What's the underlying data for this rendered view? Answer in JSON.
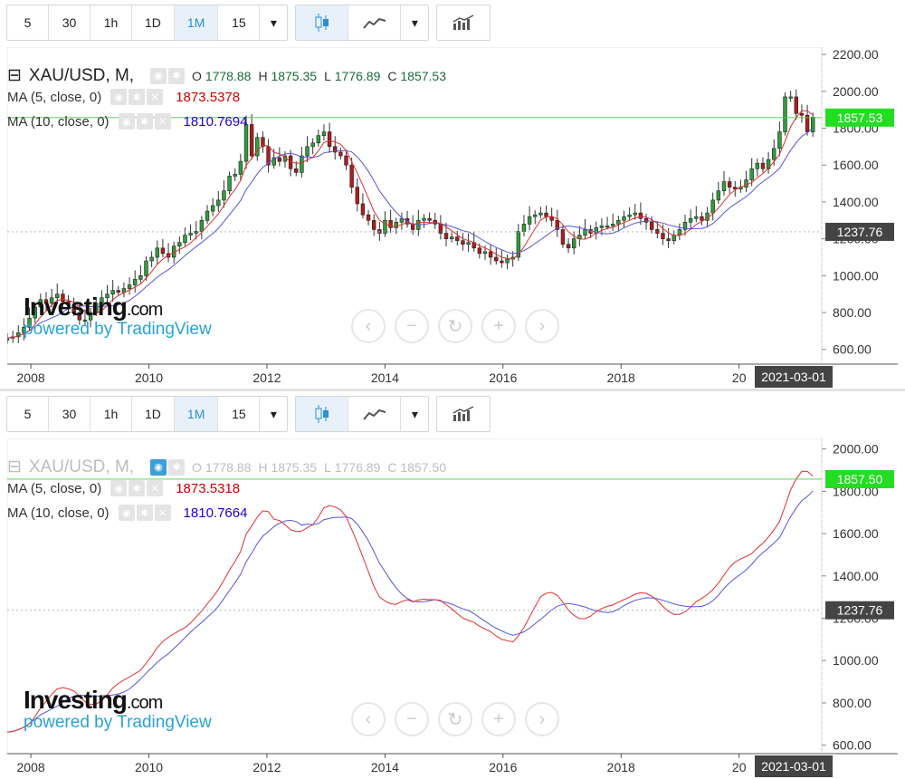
{
  "toolbar": {
    "intervals": [
      "5",
      "30",
      "1h",
      "1D",
      "1M",
      "15"
    ],
    "active_interval": "1M"
  },
  "top": {
    "symbol": "XAU/USD, M,",
    "ohlc": {
      "o_label": "O",
      "o": "1778.88",
      "h_label": "H",
      "h": "1875.35",
      "l_label": "L",
      "l": "1776.89",
      "c_label": "C",
      "c": "1857.53"
    },
    "ma5": {
      "label": "MA (5, close, 0)",
      "value": "1873.5378",
      "color": "#cc0000"
    },
    "ma10": {
      "label": "MA (10, close, 0)",
      "value": "1810.7694",
      "color": "#2200cc"
    },
    "last_price_tag": "1857.53",
    "ref_price_tag": "1237.76",
    "date_tag": "2021-03-01"
  },
  "bottom": {
    "symbol": "XAU/USD, M,",
    "ohlc": {
      "o_label": "O",
      "o": "1778.88",
      "h_label": "H",
      "h": "1875.35",
      "l_label": "L",
      "l": "1776.89",
      "c_label": "C",
      "c": "1857.50"
    },
    "ma5": {
      "label": "MA (5, close, 0)",
      "value": "1873.5318",
      "color": "#cc0000"
    },
    "ma10": {
      "label": "MA (10, close, 0)",
      "value": "1810.7664",
      "color": "#2200cc"
    },
    "last_price_tag": "1857.50",
    "ref_price_tag": "1237.76",
    "date_tag": "2021-03-01"
  },
  "watermark": {
    "brand": "Investing",
    "brand_suffix": ".com",
    "powered": "powered by TradingView"
  },
  "colors": {
    "up": "#2e9e3a",
    "down": "#b01c1c",
    "ma5": "#e03030",
    "ma10": "#5555dd",
    "last_tag": "#22dd22",
    "ref_tag": "#444444"
  },
  "chart_data": [
    {
      "type": "candlestick",
      "x_ticks": [
        "2008",
        "2010",
        "2012",
        "2014",
        "2016",
        "2018",
        "20"
      ],
      "y_ticks": [
        "600.00",
        "800.00",
        "1000.00",
        "1200.00",
        "1400.00",
        "1600.00",
        "1800.00",
        "2000.00",
        "2200.00"
      ],
      "ylim": [
        520,
        2240
      ],
      "xlim": [
        2007.6,
        2021.4
      ],
      "series": [
        {
          "kind": "ohlc",
          "years": [
            2007.6,
            2021.25
          ],
          "close": [
            662,
            668,
            690,
            720,
            770,
            830,
            870,
            850,
            880,
            900,
            860,
            840,
            800,
            760,
            760,
            800,
            850,
            880,
            900,
            920,
            910,
            930,
            950,
            980,
            1000,
            1080,
            1100,
            1150,
            1120,
            1100,
            1160,
            1180,
            1220,
            1230,
            1240,
            1300,
            1350,
            1380,
            1410,
            1460,
            1540,
            1550,
            1620,
            1820,
            1650,
            1750,
            1700,
            1600,
            1640,
            1620,
            1650,
            1580,
            1560,
            1650,
            1700,
            1720,
            1760,
            1780,
            1700,
            1670,
            1650,
            1600,
            1480,
            1390,
            1330,
            1300,
            1250,
            1230,
            1300,
            1260,
            1290,
            1310,
            1280,
            1250,
            1300,
            1310,
            1300,
            1280,
            1230,
            1200,
            1210,
            1190,
            1170,
            1180,
            1150,
            1120,
            1130,
            1100,
            1080,
            1070,
            1090,
            1100,
            1240,
            1280,
            1320,
            1330,
            1340,
            1320,
            1300,
            1250,
            1170,
            1150,
            1200,
            1220,
            1250,
            1230,
            1260,
            1270,
            1270,
            1280,
            1300,
            1320,
            1330,
            1340,
            1310,
            1290,
            1250,
            1230,
            1200,
            1190,
            1220,
            1250,
            1290,
            1310,
            1320,
            1300,
            1340,
            1410,
            1460,
            1510,
            1480,
            1470,
            1480,
            1520,
            1580,
            1610,
            1580,
            1630,
            1690,
            1780,
            1970,
            1970,
            1880,
            1870,
            1780,
            1860
          ],
          "open": [
            650,
            662,
            668,
            690,
            720,
            770,
            830,
            870,
            850,
            880,
            900,
            860,
            840,
            800,
            760,
            760,
            800,
            850,
            880,
            900,
            920,
            910,
            930,
            950,
            980,
            1000,
            1080,
            1100,
            1150,
            1120,
            1100,
            1160,
            1180,
            1220,
            1230,
            1240,
            1300,
            1350,
            1380,
            1410,
            1460,
            1540,
            1550,
            1620,
            1820,
            1650,
            1750,
            1700,
            1600,
            1640,
            1620,
            1650,
            1580,
            1560,
            1650,
            1700,
            1720,
            1760,
            1780,
            1700,
            1670,
            1650,
            1600,
            1480,
            1390,
            1330,
            1300,
            1250,
            1230,
            1300,
            1260,
            1290,
            1310,
            1280,
            1250,
            1300,
            1310,
            1300,
            1280,
            1230,
            1200,
            1210,
            1190,
            1170,
            1180,
            1150,
            1120,
            1130,
            1100,
            1080,
            1070,
            1090,
            1100,
            1240,
            1280,
            1320,
            1330,
            1340,
            1320,
            1300,
            1250,
            1170,
            1150,
            1200,
            1220,
            1250,
            1230,
            1260,
            1270,
            1270,
            1280,
            1300,
            1320,
            1330,
            1340,
            1310,
            1290,
            1250,
            1230,
            1200,
            1190,
            1220,
            1250,
            1290,
            1310,
            1320,
            1300,
            1340,
            1410,
            1460,
            1510,
            1480,
            1470,
            1480,
            1520,
            1580,
            1610,
            1580,
            1630,
            1690,
            1780,
            1970,
            1970,
            1880,
            1870,
            1780
          ]
        }
      ],
      "price_tags": [
        {
          "value": 1857.53,
          "label": "1857.53"
        },
        {
          "value": 1237.76,
          "label": "1237.76"
        }
      ]
    },
    {
      "type": "line",
      "x_ticks": [
        "2008",
        "2010",
        "2012",
        "2014",
        "2016",
        "2018",
        "20"
      ],
      "y_ticks": [
        "600.00",
        "800.00",
        "1000.00",
        "1200.00",
        "1400.00",
        "1600.00",
        "1800.00",
        "2000.00"
      ],
      "ylim": [
        560,
        2050
      ],
      "xlim": [
        2007.6,
        2021.4
      ],
      "series": [
        {
          "name": "MA (5, close, 0)",
          "kind": "ma5"
        },
        {
          "name": "MA (10, close, 0)",
          "kind": "ma10"
        }
      ],
      "price_tags": [
        {
          "value": 1857.5,
          "label": "1857.50"
        },
        {
          "value": 1237.76,
          "label": "1237.76"
        }
      ]
    }
  ]
}
